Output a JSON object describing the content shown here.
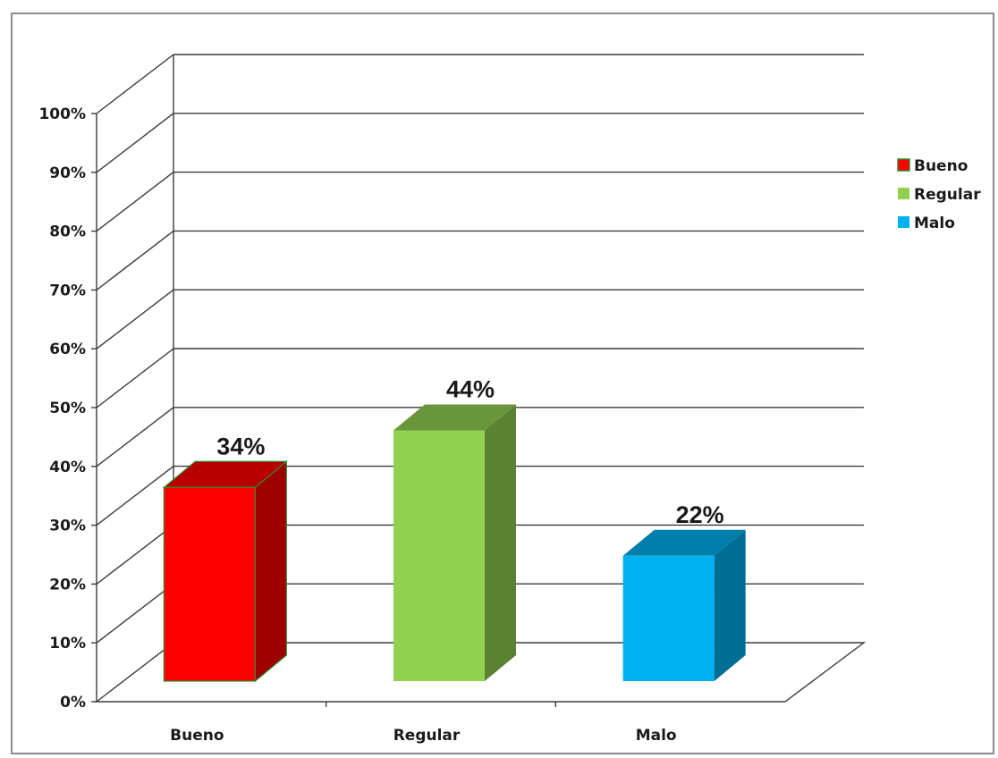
{
  "chart_data": {
    "type": "bar",
    "style": "3d-column",
    "categories": [
      "Bueno",
      "Regular",
      "Malo"
    ],
    "series": [
      {
        "values": [
          34,
          44,
          22
        ],
        "data_labels": [
          "34%",
          "44%",
          "22%"
        ]
      }
    ],
    "bar_colors": [
      "#ff0000",
      "#92d050",
      "#00b0f0"
    ],
    "ylim": [
      0,
      100
    ],
    "y_ticks": [
      0,
      10,
      20,
      30,
      40,
      50,
      60,
      70,
      80,
      90,
      100
    ],
    "y_tick_labels": [
      "0%",
      "10%",
      "20%",
      "30%",
      "40%",
      "50%",
      "60%",
      "70%",
      "80%",
      "90%",
      "100%"
    ],
    "grid": true,
    "legend": {
      "placement": "right",
      "entries": [
        "Bueno",
        "Regular",
        "Malo"
      ],
      "colors": [
        "#ff0000",
        "#92d050",
        "#00b0f0"
      ]
    },
    "title": "",
    "xlabel": "",
    "ylabel": ""
  }
}
